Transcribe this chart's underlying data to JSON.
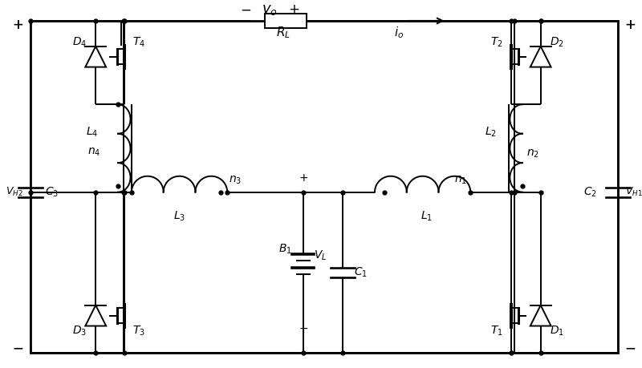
{
  "bg_color": "#ffffff",
  "fig_width": 8.0,
  "fig_height": 4.59,
  "dpi": 100,
  "xlim": [
    0,
    800
  ],
  "ylim": [
    0,
    459
  ]
}
